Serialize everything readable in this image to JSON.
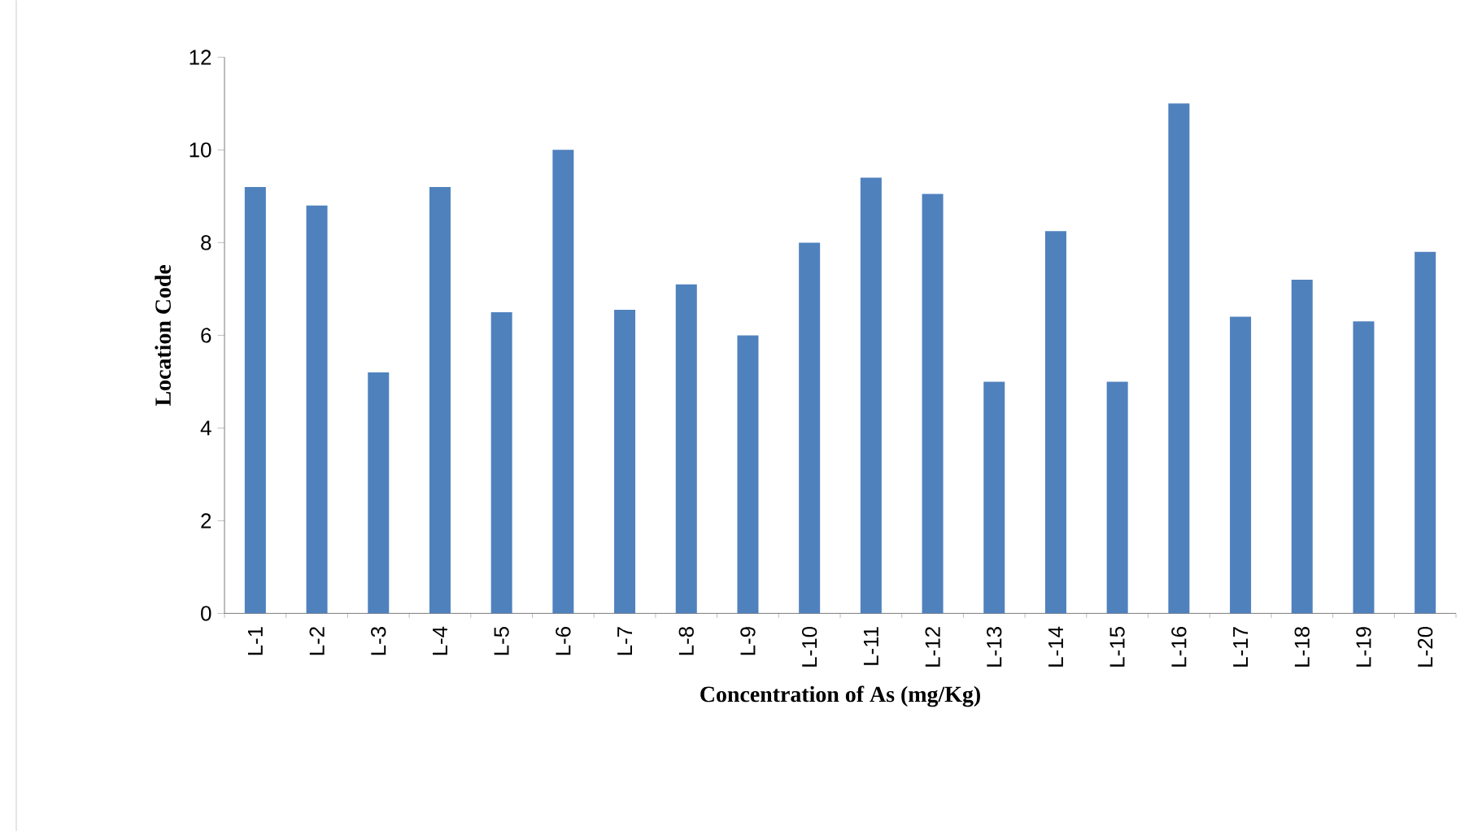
{
  "chart_data": {
    "type": "bar",
    "xlabel": "Concentration of As (mg/Kg)",
    "ylabel": "Location Code",
    "categories": [
      "L-1",
      "L-2",
      "L-3",
      "L-4",
      "L-5",
      "L-6",
      "L-7",
      "L-8",
      "L-9",
      "L-10",
      "L-11",
      "L-12",
      "L-13",
      "L-14",
      "L-15",
      "L-16",
      "L-17",
      "L-18",
      "L-19",
      "L-20"
    ],
    "values": [
      9.2,
      8.8,
      5.2,
      9.2,
      6.5,
      10,
      6.55,
      7.1,
      6.0,
      8.0,
      9.4,
      9.05,
      5.0,
      8.25,
      5.0,
      11.0,
      6.4,
      7.2,
      6.3,
      7.8
    ],
    "color": "#4f81bd",
    "ylim": [
      0,
      12
    ],
    "yticks": [
      0,
      2,
      4,
      6,
      8,
      10,
      12
    ]
  }
}
